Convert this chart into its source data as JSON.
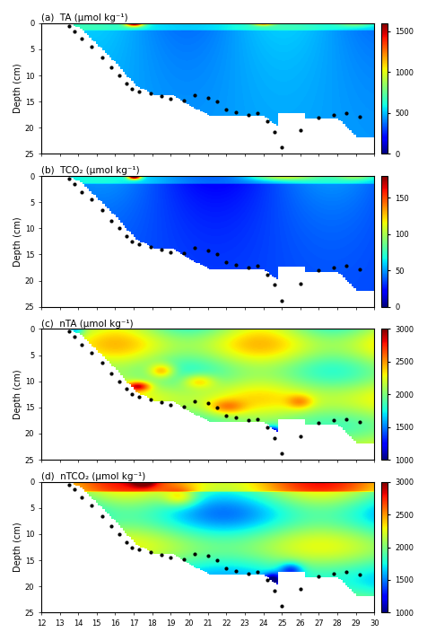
{
  "title_a": "(a)  TA (μmol kg⁻¹)",
  "title_b": "(b)  TCO₂ (μmol kg⁻¹)",
  "title_c": "(c)  nTA (μmol kg⁻¹)",
  "title_d": "(d)  nTCO₂ (μmol kg⁻¹)",
  "ylabel": "Depth (cm)",
  "xlabel_ticks": [
    12,
    13,
    14,
    15,
    16,
    17,
    18,
    19,
    20,
    21,
    22,
    23,
    24,
    25,
    26,
    27,
    28,
    29,
    30
  ],
  "ylim": [
    25,
    0
  ],
  "xlim": [
    12,
    30
  ],
  "cbar_ab_ticks": [
    0,
    500,
    1000,
    1500
  ],
  "cbar_ab_vmin": 0,
  "cbar_ab_vmax": 1600,
  "cbar_tco2_ticks": [
    0,
    50,
    100,
    150
  ],
  "cbar_tco2_vmin": 0,
  "cbar_tco2_vmax": 180,
  "cbar_cd_ticks": [
    1000,
    1500,
    2000,
    2500,
    3000
  ],
  "cbar_cd_vmin": 1000,
  "cbar_cd_vmax": 3000
}
